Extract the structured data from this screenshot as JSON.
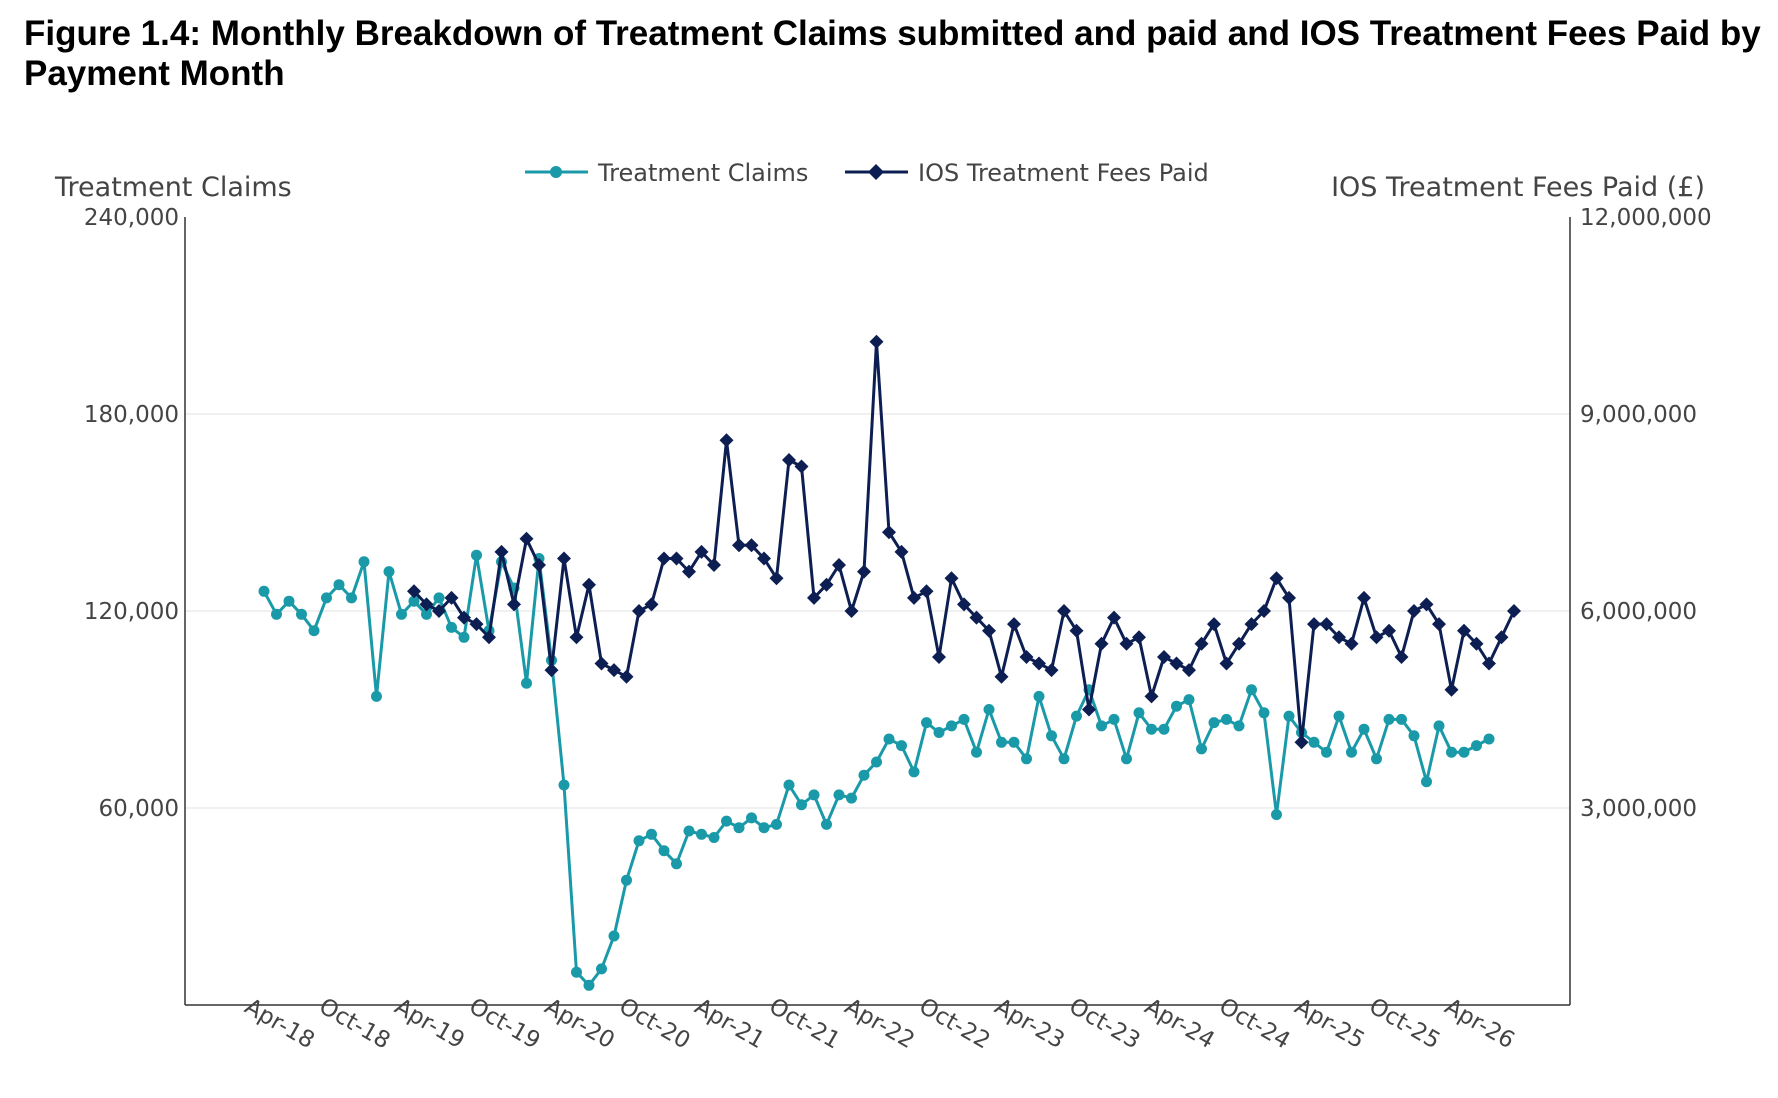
{
  "figure_title": "Figure 1.4: Monthly Breakdown of Treatment Claims submitted and paid and IOS Treatment Fees Paid by Payment Month",
  "colors": {
    "claims": "#1a9aa8",
    "fees": "#0d1f52",
    "grid": "#e6e6e6",
    "axis": "#333333",
    "text": "#444444"
  },
  "chart_data": {
    "type": "line",
    "title": "Figure 1.4: Monthly Breakdown of Treatment Claims submitted and paid and IOS Treatment Fees Paid by Payment Month",
    "y_left_label": "Treatment Claims",
    "y_right_label": "IOS Treatment Fees Paid (£)",
    "y_left_lim": [
      0,
      240000
    ],
    "y_right_lim": [
      0,
      12000000
    ],
    "y_left_ticks": [
      "60,000",
      "120,000",
      "180,000",
      "240,000"
    ],
    "y_left_tick_values": [
      60000,
      120000,
      180000,
      240000
    ],
    "y_right_ticks": [
      "3,000,000",
      "6,000,000",
      "9,000,000",
      "12,000,000"
    ],
    "y_right_tick_values": [
      3000000,
      6000000,
      9000000,
      12000000
    ],
    "x_ticks": [
      "Apr-18",
      "Oct-18",
      "Apr-19",
      "Oct-19",
      "Apr-20",
      "Oct-20",
      "Apr-21",
      "Oct-21",
      "Apr-22",
      "Oct-22",
      "Apr-23",
      "Oct-23",
      "Apr-24",
      "Oct-24",
      "Apr-25",
      "Oct-25",
      "Apr-26"
    ],
    "x_tick_month_index": [
      0,
      6,
      12,
      18,
      24,
      30,
      36,
      42,
      48,
      54,
      60,
      66,
      72,
      78,
      84,
      90,
      96
    ],
    "x_start": "Apr-18",
    "x_end": "Apr-26",
    "grid": "horizontal",
    "legend_position": "top-center",
    "series": [
      {
        "name": "Treatment Claims",
        "axis": "left",
        "marker": "circle",
        "start": "Apr-18",
        "values": [
          126000,
          119000,
          123000,
          119000,
          114000,
          124000,
          128000,
          124000,
          135000,
          94000,
          132000,
          119000,
          123000,
          119000,
          124000,
          115000,
          112000,
          137000,
          114000,
          135000,
          127000,
          98000,
          136000,
          105000,
          67000,
          10000,
          6000,
          11000,
          21000,
          38000,
          50000,
          52000,
          47000,
          43000,
          53000,
          52000,
          51000,
          56000,
          54000,
          57000,
          54000,
          55000,
          67000,
          61000,
          64000,
          55000,
          64000,
          63000,
          70000,
          74000,
          81000,
          79000,
          71000,
          86000,
          83000,
          85000,
          87000,
          77000,
          90000,
          80000,
          80000,
          75000,
          94000,
          82000,
          75000,
          88000,
          96000,
          85000,
          87000,
          75000,
          89000,
          84000,
          84000,
          91000,
          93000,
          78000,
          86000,
          87000,
          85000,
          96000,
          89000,
          58000,
          88000,
          83000,
          80000,
          77000,
          88000,
          77000,
          84000,
          75000,
          87000,
          87000,
          82000,
          68000,
          85000,
          77000,
          77000,
          79000,
          81000
        ]
      },
      {
        "name": "IOS Treatment Fees Paid",
        "axis": "right",
        "marker": "diamond",
        "start": "Apr-19",
        "values": [
          6300000,
          6100000,
          6000000,
          6200000,
          5900000,
          5800000,
          5600000,
          6900000,
          6100000,
          7100000,
          6700000,
          5100000,
          6800000,
          5600000,
          6400000,
          5200000,
          5100000,
          5000000,
          6000000,
          6100000,
          6800000,
          6800000,
          6600000,
          6900000,
          6700000,
          8600000,
          7000000,
          7000000,
          6800000,
          6500000,
          8300000,
          8200000,
          6200000,
          6400000,
          6700000,
          6000000,
          6600000,
          10100000,
          7200000,
          6900000,
          6200000,
          6300000,
          5300000,
          6500000,
          6100000,
          5900000,
          5700000,
          5000000,
          5800000,
          5300000,
          5200000,
          5100000,
          6000000,
          5700000,
          4500000,
          5500000,
          5900000,
          5500000,
          5600000,
          4700000,
          5300000,
          5200000,
          5100000,
          5500000,
          5800000,
          5200000,
          5500000,
          5800000,
          6000000,
          6500000,
          6200000,
          4000000,
          5800000,
          5800000,
          5600000,
          5500000,
          6200000,
          5600000,
          5700000,
          5300000,
          6000000,
          6100000,
          5800000,
          4800000,
          5700000,
          5500000,
          5200000,
          5600000,
          6000000
        ]
      }
    ]
  }
}
